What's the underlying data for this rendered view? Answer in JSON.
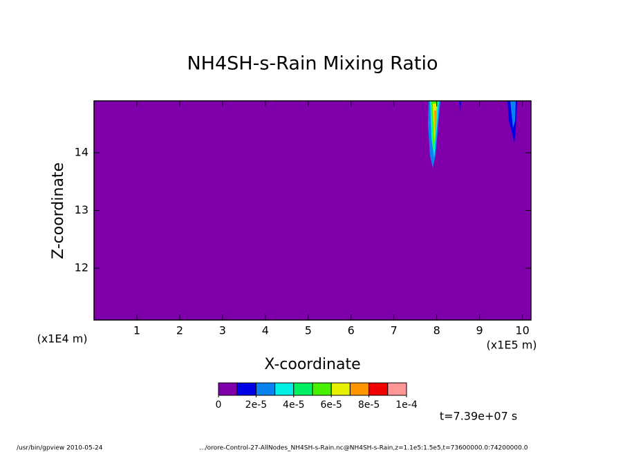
{
  "chart_data": {
    "type": "contour",
    "title": "NH4SH-s-Rain Mixing Ratio",
    "x_label": "X-coordinate",
    "y_label": "Z-coordinate",
    "x_unit": "(x1E5 m)",
    "y_unit": "(x1E4 m)",
    "xlim": [
      0,
      10.2
    ],
    "xticks": [
      1,
      2,
      3,
      4,
      5,
      6,
      7,
      8,
      9,
      10
    ],
    "ylim": [
      11.1,
      14.9
    ],
    "yticks": [
      12,
      13,
      14
    ],
    "background_color": "#7f00aa",
    "colorbar": {
      "colors": [
        "#7f00aa",
        "#0000e6",
        "#0a82f0",
        "#00f0e6",
        "#00f064",
        "#46f000",
        "#e6f000",
        "#ff9600",
        "#f00000",
        "#ff9696"
      ],
      "ticks": [
        0,
        {
          "value": 2e-05,
          "label": "2e-5"
        },
        {
          "value": 4e-05,
          "label": "4e-5"
        },
        {
          "value": 6e-05,
          "label": "6e-5"
        },
        {
          "value": 8e-05,
          "label": "8e-5"
        },
        {
          "value": 0.0001,
          "label": "1e-4"
        }
      ],
      "lim": [
        0,
        0.0001
      ]
    },
    "time_label": "t=7.39e+07 s",
    "footer_left": "/usr/bin/gpview  2010-05-24",
    "footer_right": ".../orore-Control-27-AllNodes_NH4SH-s-Rain.nc@NH4SH-s-Rain,z=1.1e5:1.5e5,t=73600000.0:74200000.0"
  }
}
